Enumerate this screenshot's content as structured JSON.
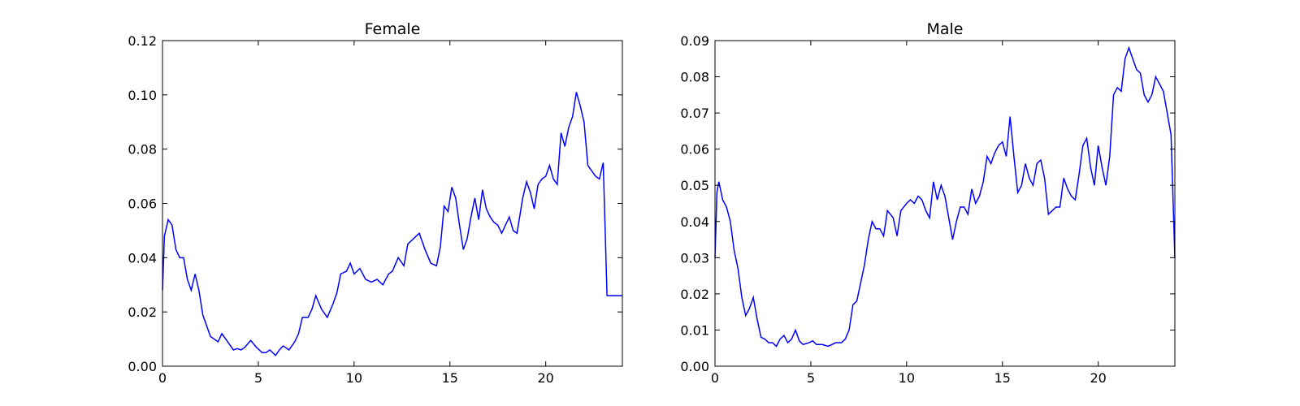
{
  "colors": {
    "line": "#0000ff",
    "axes": "#000000",
    "background": "#ffffff"
  },
  "chart_data": [
    {
      "type": "line",
      "title": "Female",
      "xlabel": "",
      "ylabel": "",
      "xlim": [
        0,
        24
      ],
      "ylim": [
        0,
        0.12
      ],
      "xticks": [
        0,
        5,
        10,
        15,
        20
      ],
      "xtick_labels": [
        "0",
        "5",
        "10",
        "15",
        "20"
      ],
      "yticks": [
        0,
        0.02,
        0.04,
        0.06,
        0.08,
        0.1,
        0.12
      ],
      "ytick_labels": [
        "0.00",
        "0.02",
        "0.04",
        "0.06",
        "0.08",
        "0.10",
        "0.12"
      ],
      "grid": false,
      "series": [
        {
          "x": [
            0,
            0.1,
            0.3,
            0.5,
            0.7,
            0.9,
            1.1,
            1.3,
            1.5,
            1.7,
            1.9,
            2.1,
            2.3,
            2.5,
            2.7,
            2.9,
            3.1,
            3.3,
            3.5,
            3.7,
            3.9,
            4.1,
            4.3,
            4.6,
            4.9,
            5.2,
            5.4,
            5.6,
            5.9,
            6.1,
            6.3,
            6.6,
            6.9,
            7.1,
            7.3,
            7.6,
            7.8,
            8.0,
            8.3,
            8.6,
            8.9,
            9.1,
            9.3,
            9.6,
            9.8,
            10.0,
            10.3,
            10.6,
            10.9,
            11.2,
            11.5,
            11.8,
            12.0,
            12.3,
            12.6,
            12.8,
            13.1,
            13.4,
            13.7,
            14.0,
            14.3,
            14.5,
            14.7,
            14.9,
            15.1,
            15.3,
            15.5,
            15.7,
            15.9,
            16.1,
            16.3,
            16.5,
            16.7,
            16.9,
            17.1,
            17.3,
            17.5,
            17.7,
            17.9,
            18.1,
            18.3,
            18.5,
            18.8,
            19.0,
            19.2,
            19.4,
            19.6,
            19.8,
            20.0,
            20.2,
            20.4,
            20.6,
            20.8,
            21.0,
            21.2,
            21.4,
            21.6,
            21.8,
            22.0,
            22.2,
            22.4,
            22.6,
            22.8,
            23.0,
            23.2,
            23.4,
            23.6,
            23.8,
            24.0
          ],
          "y": [
            0.028,
            0.048,
            0.054,
            0.052,
            0.043,
            0.04,
            0.04,
            0.032,
            0.028,
            0.034,
            0.028,
            0.019,
            0.015,
            0.011,
            0.01,
            0.009,
            0.012,
            0.01,
            0.008,
            0.006,
            0.0065,
            0.006,
            0.007,
            0.0095,
            0.007,
            0.005,
            0.005,
            0.006,
            0.004,
            0.006,
            0.0075,
            0.006,
            0.009,
            0.012,
            0.018,
            0.018,
            0.021,
            0.026,
            0.021,
            0.018,
            0.023,
            0.027,
            0.034,
            0.035,
            0.038,
            0.034,
            0.036,
            0.032,
            0.031,
            0.032,
            0.03,
            0.034,
            0.035,
            0.04,
            0.037,
            0.045,
            0.047,
            0.049,
            0.043,
            0.038,
            0.037,
            0.044,
            0.059,
            0.057,
            0.066,
            0.062,
            0.052,
            0.043,
            0.047,
            0.055,
            0.062,
            0.054,
            0.065,
            0.058,
            0.055,
            0.053,
            0.052,
            0.049,
            0.052,
            0.055,
            0.05,
            0.049,
            0.062,
            0.068,
            0.064,
            0.058,
            0.067,
            0.069,
            0.07,
            0.074,
            0.069,
            0.067,
            0.086,
            0.081,
            0.088,
            0.092,
            0.101,
            0.096,
            0.09,
            0.074,
            0.072,
            0.07,
            0.069,
            0.075,
            0.026,
            0.026,
            0.026,
            0.026,
            0.026
          ]
        }
      ]
    },
    {
      "type": "line",
      "title": "Male",
      "xlabel": "",
      "ylabel": "",
      "xlim": [
        0,
        24
      ],
      "ylim": [
        0,
        0.09
      ],
      "xticks": [
        0,
        5,
        10,
        15,
        20
      ],
      "xtick_labels": [
        "0",
        "5",
        "10",
        "15",
        "20"
      ],
      "yticks": [
        0,
        0.01,
        0.02,
        0.03,
        0.04,
        0.05,
        0.06,
        0.07,
        0.08,
        0.09
      ],
      "ytick_labels": [
        "0.00",
        "0.01",
        "0.02",
        "0.03",
        "0.04",
        "0.05",
        "0.06",
        "0.07",
        "0.08",
        "0.09"
      ],
      "grid": false,
      "series": [
        {
          "x": [
            0,
            0.1,
            0.2,
            0.4,
            0.6,
            0.8,
            1.0,
            1.2,
            1.4,
            1.6,
            1.8,
            2.0,
            2.2,
            2.4,
            2.6,
            2.8,
            3.0,
            3.2,
            3.4,
            3.6,
            3.8,
            4.0,
            4.2,
            4.4,
            4.6,
            4.9,
            5.1,
            5.3,
            5.6,
            5.9,
            6.1,
            6.3,
            6.6,
            6.8,
            7.0,
            7.2,
            7.4,
            7.6,
            7.8,
            8.0,
            8.2,
            8.4,
            8.6,
            8.8,
            9.0,
            9.3,
            9.5,
            9.7,
            10.0,
            10.2,
            10.4,
            10.6,
            10.8,
            11.0,
            11.2,
            11.4,
            11.6,
            11.8,
            12.0,
            12.2,
            12.4,
            12.6,
            12.8,
            13.0,
            13.2,
            13.4,
            13.6,
            13.8,
            14.0,
            14.2,
            14.4,
            14.6,
            14.8,
            15.0,
            15.2,
            15.4,
            15.6,
            15.8,
            16.0,
            16.2,
            16.4,
            16.6,
            16.8,
            17.0,
            17.2,
            17.4,
            17.6,
            17.8,
            18.0,
            18.2,
            18.4,
            18.6,
            18.8,
            19.0,
            19.2,
            19.4,
            19.6,
            19.8,
            20.0,
            20.2,
            20.4,
            20.6,
            20.8,
            21.0,
            21.2,
            21.4,
            21.6,
            21.8,
            22.0,
            22.2,
            22.4,
            22.6,
            22.8,
            23.0,
            23.2,
            23.4,
            23.6,
            23.8,
            24.0
          ],
          "y": [
            0.03,
            0.048,
            0.051,
            0.046,
            0.044,
            0.04,
            0.032,
            0.027,
            0.019,
            0.014,
            0.016,
            0.019,
            0.013,
            0.008,
            0.0075,
            0.0065,
            0.0065,
            0.0055,
            0.0075,
            0.0085,
            0.0065,
            0.0075,
            0.01,
            0.007,
            0.006,
            0.0065,
            0.007,
            0.006,
            0.006,
            0.0055,
            0.006,
            0.0065,
            0.0065,
            0.0075,
            0.01,
            0.017,
            0.018,
            0.023,
            0.028,
            0.035,
            0.04,
            0.038,
            0.038,
            0.036,
            0.043,
            0.041,
            0.036,
            0.043,
            0.045,
            0.046,
            0.045,
            0.047,
            0.046,
            0.043,
            0.041,
            0.051,
            0.046,
            0.05,
            0.047,
            0.041,
            0.035,
            0.04,
            0.044,
            0.044,
            0.042,
            0.049,
            0.045,
            0.047,
            0.051,
            0.058,
            0.056,
            0.059,
            0.061,
            0.062,
            0.058,
            0.069,
            0.058,
            0.048,
            0.05,
            0.056,
            0.052,
            0.05,
            0.056,
            0.057,
            0.052,
            0.042,
            0.043,
            0.044,
            0.044,
            0.052,
            0.049,
            0.047,
            0.046,
            0.053,
            0.061,
            0.063,
            0.055,
            0.05,
            0.061,
            0.055,
            0.05,
            0.058,
            0.075,
            0.077,
            0.076,
            0.085,
            0.088,
            0.085,
            0.082,
            0.081,
            0.075,
            0.073,
            0.075,
            0.08,
            0.078,
            0.076,
            0.07,
            0.064,
            0.03
          ]
        }
      ]
    }
  ]
}
